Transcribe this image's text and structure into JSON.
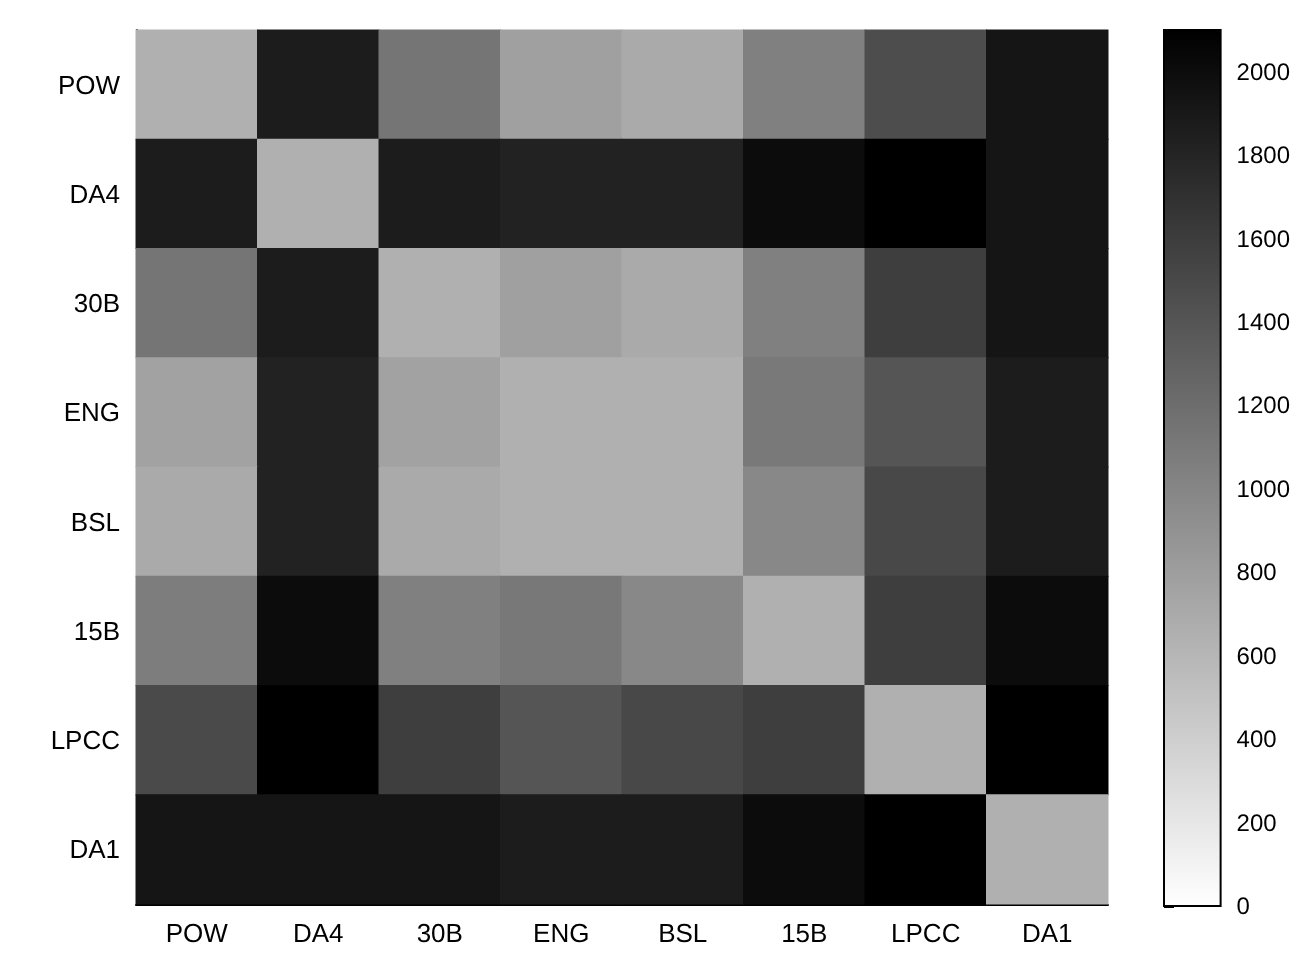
{
  "chart_data": {
    "type": "heatmap",
    "categories": [
      "POW",
      "DA4",
      "30B",
      "ENG",
      "BSL",
      "15B",
      "LPCC",
      "DA1"
    ],
    "y_categories": [
      "POW",
      "DA4",
      "30B",
      "ENG",
      "BSL",
      "15B",
      "LPCC",
      "DA1"
    ],
    "cells": [
      [
        650,
        1870,
        1140,
        780,
        700,
        1050,
        1470,
        1930
      ],
      [
        1870,
        650,
        1870,
        1820,
        1820,
        2000,
        2100,
        1930
      ],
      [
        1140,
        1870,
        650,
        780,
        700,
        1050,
        1590,
        1930
      ],
      [
        770,
        1820,
        770,
        650,
        650,
        1100,
        1400,
        1870
      ],
      [
        700,
        1820,
        700,
        650,
        650,
        980,
        1510,
        1870
      ],
      [
        1070,
        2000,
        1050,
        1110,
        980,
        650,
        1590,
        2000
      ],
      [
        1490,
        2100,
        1590,
        1400,
        1510,
        1590,
        650,
        2100
      ],
      [
        1930,
        1930,
        1930,
        1870,
        1870,
        2000,
        2100,
        650
      ]
    ],
    "clim": [
      0,
      2100
    ],
    "cticks": [
      0,
      200,
      400,
      600,
      800,
      1000,
      1200,
      1400,
      1600,
      1800,
      2000
    ]
  }
}
